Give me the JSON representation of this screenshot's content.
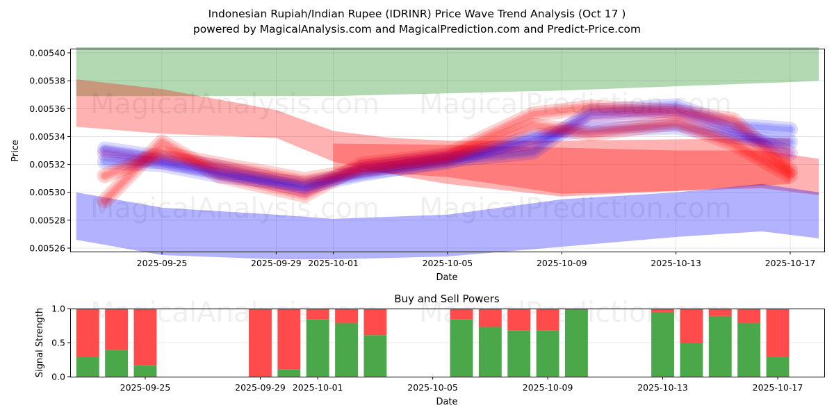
{
  "header": {
    "title": "Indonesian Rupiah/Indian Rupee (IDRINR) Price Wave Trend Analysis (Oct 17 )",
    "subtitle": "powered by MagicalAnalysis.com and MagicalPrediction.com and Predict-Price.com"
  },
  "watermarks": [
    "MagicalAnalysis.com",
    "MagicalPrediction.com"
  ],
  "colors": {
    "buy": "#4aa84a",
    "sell": "#ff4b4b",
    "band_green": "#b0d8b0",
    "band_red": "#ff9a9a",
    "band_blue": "#a8a8ff"
  },
  "chart_data": [
    {
      "type": "area",
      "title": "",
      "xlabel": "Date",
      "ylabel": "Price",
      "xlim": [
        "2025-09-21",
        "2025-10-18"
      ],
      "ylim": [
        0.005257,
        0.005403
      ],
      "grid": true,
      "x_ticks": [
        "2025-09-25",
        "2025-09-29",
        "2025-10-01",
        "2025-10-05",
        "2025-10-09",
        "2025-10-13",
        "2025-10-17"
      ],
      "y_ticks": [
        "0.00526",
        "0.00528",
        "0.00530",
        "0.00532",
        "0.00534",
        "0.00536",
        "0.00538",
        "0.00540"
      ],
      "bands": [
        {
          "name": "upper-green-band",
          "color": "green",
          "x": [
            "2025-09-22",
            "2025-09-25",
            "2025-09-29",
            "2025-10-01",
            "2025-10-05",
            "2025-10-09",
            "2025-10-13",
            "2025-10-17",
            "2025-10-18"
          ],
          "upper": [
            0.005404,
            0.005404,
            0.005404,
            0.005404,
            0.005404,
            0.005404,
            0.005404,
            0.005404,
            0.005404
          ],
          "lower": [
            0.005369,
            0.005369,
            0.005369,
            0.005369,
            0.005371,
            0.005373,
            0.005376,
            0.005379,
            0.00538
          ]
        },
        {
          "name": "upper-red-band",
          "color": "red",
          "x": [
            "2025-09-22",
            "2025-09-25",
            "2025-09-29",
            "2025-10-01",
            "2025-10-03",
            "2025-10-05",
            "2025-10-09",
            "2025-10-13",
            "2025-10-17"
          ],
          "upper": [
            0.005381,
            0.005374,
            0.005359,
            0.005344,
            0.005339,
            0.005337,
            0.005337,
            0.005338,
            0.005339
          ],
          "lower": [
            0.005347,
            0.005342,
            0.005339,
            0.005322,
            0.005313,
            0.005306,
            0.005297,
            0.005301,
            0.005306
          ]
        },
        {
          "name": "lower-red-band",
          "color": "red",
          "x": [
            "2025-10-01",
            "2025-10-05",
            "2025-10-09",
            "2025-10-13",
            "2025-10-16",
            "2025-10-18"
          ],
          "upper": [
            0.005335,
            0.005334,
            0.005332,
            0.00533,
            0.00533,
            0.005324
          ],
          "lower": [
            0.005316,
            0.005311,
            0.005299,
            0.005301,
            0.005303,
            0.005298
          ]
        },
        {
          "name": "lower-blue-band",
          "color": "blue",
          "x": [
            "2025-09-22",
            "2025-09-25",
            "2025-09-29",
            "2025-10-01",
            "2025-10-05",
            "2025-10-09",
            "2025-10-13",
            "2025-10-16",
            "2025-10-18"
          ],
          "upper": [
            0.0053,
            0.005289,
            0.005284,
            0.005281,
            0.005284,
            0.005295,
            0.0053,
            0.005306,
            0.0053
          ],
          "lower": [
            0.005266,
            0.005255,
            0.005252,
            0.005252,
            0.005254,
            0.005261,
            0.005268,
            0.005272,
            0.005267
          ]
        }
      ],
      "waves": [
        {
          "color": "blue",
          "x": [
            "2025-09-23",
            "2025-09-25",
            "2025-09-27",
            "2025-09-30",
            "2025-10-02",
            "2025-10-05",
            "2025-10-08",
            "2025-10-10",
            "2025-10-13",
            "2025-10-15",
            "2025-10-17"
          ],
          "y": [
            0.005331,
            0.005325,
            0.005318,
            0.005304,
            0.005313,
            0.005323,
            0.005329,
            0.005358,
            0.005362,
            0.005348,
            0.005345
          ]
        },
        {
          "color": "red",
          "x": [
            "2025-09-23",
            "2025-09-25",
            "2025-09-27",
            "2025-09-30",
            "2025-10-02",
            "2025-10-05",
            "2025-10-08",
            "2025-10-10",
            "2025-10-13",
            "2025-10-15",
            "2025-10-17"
          ],
          "y": [
            0.005294,
            0.005336,
            0.005312,
            0.005298,
            0.00532,
            0.005327,
            0.005356,
            0.005361,
            0.005358,
            0.005352,
            0.005316
          ]
        },
        {
          "color": "purple",
          "x": [
            "2025-09-23",
            "2025-09-25",
            "2025-09-27",
            "2025-09-30",
            "2025-10-02",
            "2025-10-05",
            "2025-10-08",
            "2025-10-10",
            "2025-10-13",
            "2025-10-15",
            "2025-10-17"
          ],
          "y": [
            0.005328,
            0.005322,
            0.005315,
            0.005302,
            0.005318,
            0.005326,
            0.005336,
            0.005354,
            0.005357,
            0.005344,
            0.005328
          ]
        },
        {
          "color": "blue",
          "x": [
            "2025-09-23",
            "2025-09-25",
            "2025-09-27",
            "2025-09-30",
            "2025-10-02",
            "2025-10-05",
            "2025-10-08",
            "2025-10-10",
            "2025-10-13",
            "2025-10-15",
            "2025-10-17"
          ],
          "y": [
            0.005322,
            0.00532,
            0.005312,
            0.005306,
            0.005314,
            0.005322,
            0.00534,
            0.005345,
            0.005347,
            0.00534,
            0.005336
          ]
        },
        {
          "color": "red",
          "x": [
            "2025-09-23",
            "2025-09-25",
            "2025-09-27",
            "2025-09-30",
            "2025-10-02",
            "2025-10-05",
            "2025-10-08",
            "2025-10-10",
            "2025-10-13",
            "2025-10-15",
            "2025-10-17"
          ],
          "y": [
            0.005312,
            0.005328,
            0.00532,
            0.005309,
            0.005316,
            0.005324,
            0.005348,
            0.005342,
            0.00535,
            0.005335,
            0.005312
          ]
        }
      ]
    },
    {
      "type": "bar",
      "stacked": true,
      "title": "Buy and Sell Powers",
      "xlabel": "Date",
      "ylabel": "Signal Strength",
      "ylim": [
        0,
        1.0
      ],
      "y_ticks": [
        "0.0",
        "0.5",
        "1.0"
      ],
      "x_ticks": [
        "2025-09-25",
        "2025-09-29",
        "2025-10-01",
        "2025-10-05",
        "2025-10-09",
        "2025-10-13",
        "2025-10-17"
      ],
      "grid": true,
      "categories": [
        "2025-09-23",
        "2025-09-24",
        "2025-09-25",
        "2025-09-29",
        "2025-09-30",
        "2025-10-01",
        "2025-10-02",
        "2025-10-03",
        "2025-10-06",
        "2025-10-07",
        "2025-10-08",
        "2025-10-09",
        "2025-10-10",
        "2025-10-13",
        "2025-10-14",
        "2025-10-15",
        "2025-10-16",
        "2025-10-17"
      ],
      "series": [
        {
          "name": "Buy",
          "values": [
            0.29,
            0.39,
            0.17,
            0.0,
            0.11,
            0.84,
            0.79,
            0.61,
            0.84,
            0.73,
            0.68,
            0.68,
            1.0,
            0.95,
            0.5,
            0.89,
            0.79,
            0.29
          ]
        },
        {
          "name": "Sell",
          "values": [
            0.71,
            0.61,
            0.83,
            1.0,
            0.89,
            0.16,
            0.21,
            0.39,
            0.16,
            0.27,
            0.32,
            0.32,
            0.0,
            0.05,
            0.5,
            0.11,
            0.21,
            0.71
          ]
        }
      ]
    }
  ]
}
